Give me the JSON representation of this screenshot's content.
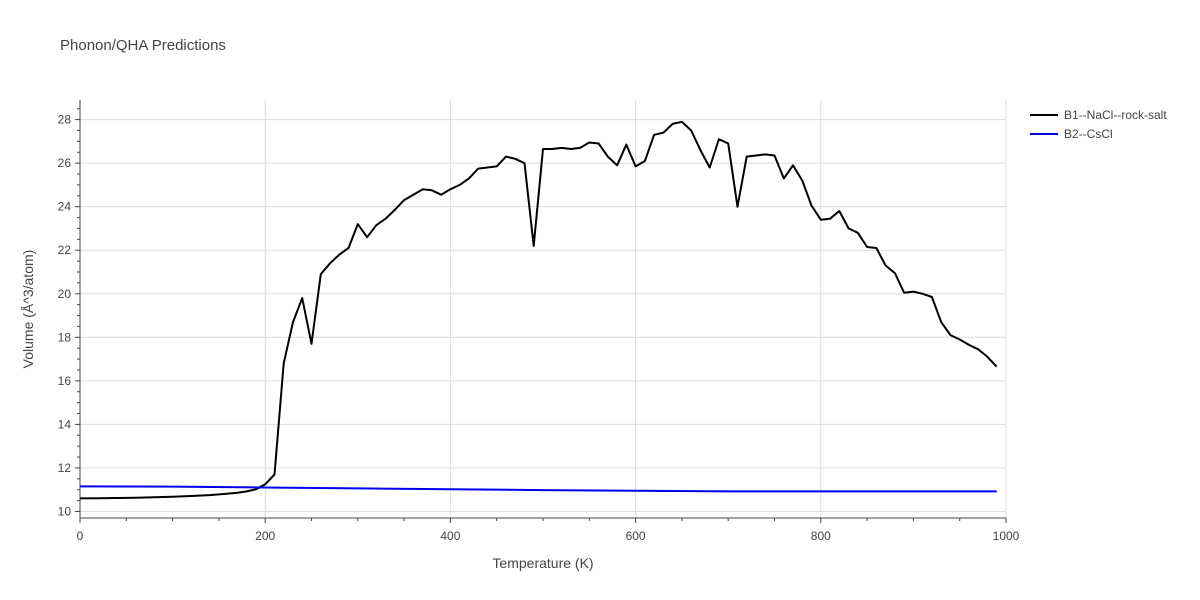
{
  "chart_data": {
    "type": "line",
    "title": "Phonon/QHA Predictions",
    "xlabel": "Temperature (K)",
    "ylabel": "Volume (Å^3/atom)",
    "xlim": [
      0,
      1000
    ],
    "ylim": [
      9.7,
      28.9
    ],
    "xticks": [
      0,
      200,
      400,
      600,
      800,
      1000
    ],
    "yticks": [
      10,
      12,
      14,
      16,
      18,
      20,
      22,
      24,
      26,
      28
    ],
    "grid": true,
    "legend_position": "top-right",
    "series": [
      {
        "name": "B1--NaCl--rock-salt",
        "color": "#000000",
        "x": [
          0,
          20,
          40,
          60,
          80,
          100,
          120,
          140,
          160,
          170,
          180,
          190,
          200,
          210,
          220,
          230,
          240,
          250,
          260,
          270,
          280,
          290,
          300,
          310,
          320,
          330,
          340,
          350,
          360,
          370,
          380,
          390,
          400,
          410,
          420,
          430,
          440,
          450,
          460,
          470,
          480,
          490,
          500,
          510,
          520,
          530,
          540,
          550,
          560,
          570,
          580,
          590,
          600,
          610,
          620,
          630,
          640,
          650,
          660,
          670,
          680,
          690,
          700,
          710,
          720,
          730,
          740,
          750,
          760,
          770,
          780,
          790,
          800,
          810,
          820,
          830,
          840,
          850,
          860,
          870,
          880,
          890,
          900,
          910,
          920,
          930,
          940,
          950,
          960,
          970,
          980,
          990
        ],
        "y": [
          10.6,
          10.61,
          10.62,
          10.63,
          10.65,
          10.68,
          10.71,
          10.75,
          10.82,
          10.86,
          10.92,
          11.02,
          11.25,
          11.7,
          16.8,
          18.7,
          19.8,
          17.7,
          20.9,
          21.4,
          21.8,
          22.1,
          23.2,
          22.6,
          23.15,
          23.45,
          23.85,
          24.3,
          24.55,
          24.8,
          24.75,
          24.55,
          24.8,
          25.0,
          25.3,
          25.75,
          25.8,
          25.85,
          26.3,
          26.2,
          26.0,
          22.2,
          26.65,
          26.65,
          26.7,
          26.65,
          26.7,
          26.95,
          26.9,
          26.3,
          25.9,
          26.85,
          25.85,
          26.1,
          27.3,
          27.4,
          27.8,
          27.9,
          27.5,
          26.6,
          25.8,
          27.1,
          26.9,
          24.0,
          26.3,
          26.35,
          26.4,
          26.35,
          25.3,
          25.9,
          25.2,
          24.05,
          23.4,
          23.45,
          23.8,
          23.0,
          22.8,
          22.15,
          22.1,
          21.3,
          20.95,
          20.05,
          20.1,
          20.0,
          19.85,
          18.7,
          18.1,
          17.9,
          17.65,
          17.45,
          17.1,
          16.65
        ]
      },
      {
        "name": "B2--CsCl",
        "color": "#0000ee",
        "x": [
          0,
          100,
          200,
          300,
          400,
          500,
          600,
          700,
          800,
          900,
          990
        ],
        "y": [
          11.15,
          11.14,
          11.1,
          11.06,
          11.02,
          10.98,
          10.95,
          10.92,
          10.92,
          10.92,
          10.92
        ]
      }
    ]
  }
}
